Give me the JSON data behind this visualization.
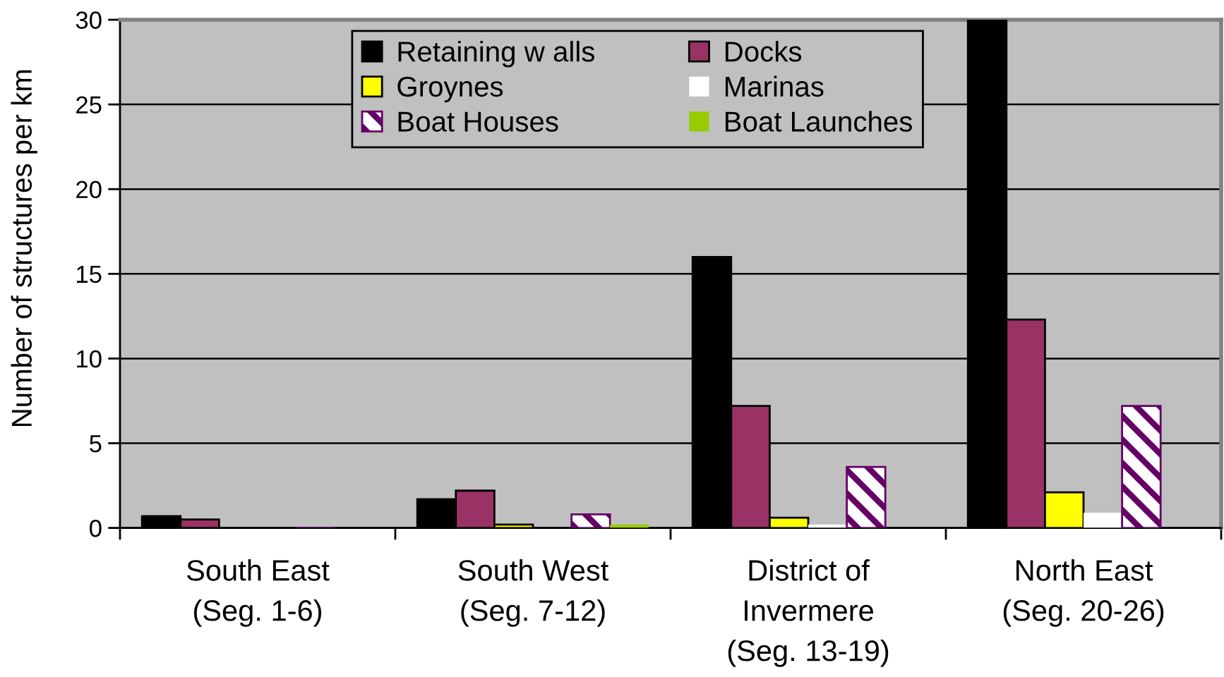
{
  "chart_data": {
    "type": "bar",
    "ylabel": "Number of structures per km",
    "categories": [
      "South East\n(Seg. 1-6)",
      "South West\n(Seg. 7-12)",
      "District of\nInvermere\n(Seg. 13-19)",
      "North East\n(Seg. 20-26)"
    ],
    "series": [
      {
        "name": "Retaining w alls",
        "color": "#000000",
        "values": [
          0.7,
          1.7,
          16,
          30
        ]
      },
      {
        "name": "Docks",
        "color": "#993366",
        "values": [
          0.5,
          2.2,
          7.2,
          12.3
        ]
      },
      {
        "name": "Groynes",
        "color": "#ffff00",
        "values": [
          0,
          0.2,
          0.6,
          2.1
        ]
      },
      {
        "name": "Marinas",
        "color": "#ffffff",
        "values": [
          0,
          0,
          0.2,
          0.9
        ]
      },
      {
        "name": "Boat Houses",
        "color": "#660066",
        "values": [
          0,
          0.8,
          3.6,
          7.2
        ]
      },
      {
        "name": "Boat Launches",
        "color": "#99cc00",
        "values": [
          0,
          0.2,
          0,
          0
        ]
      }
    ],
    "ylim": [
      0,
      30
    ],
    "yticks": [
      0,
      5,
      10,
      15,
      20,
      25,
      30
    ],
    "grid": "y",
    "legend": "top"
  }
}
